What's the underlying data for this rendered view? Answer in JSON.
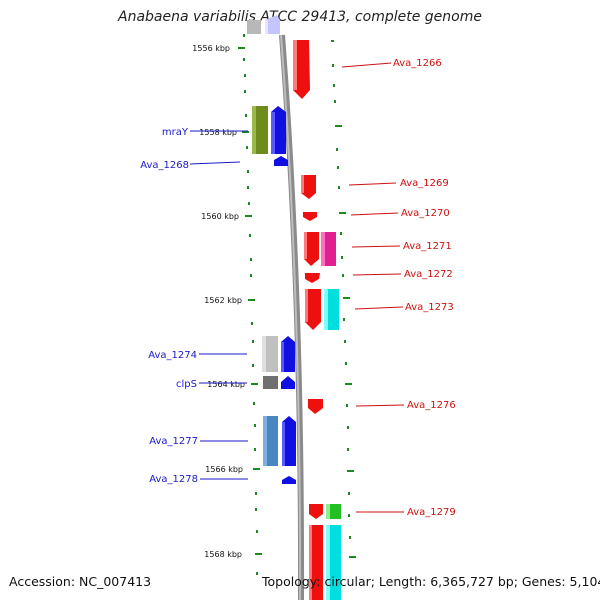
{
  "title": "Anabaena variabilis ATCC 29413, complete genome",
  "footer": {
    "accession": "Accession: NC_007413",
    "genome_info": "Topology: circular; Length: 6,365,727 bp; Genes: 5,104"
  },
  "scale_ticks": [
    "1556 kbp",
    "1558 kbp",
    "1560 kbp",
    "1562 kbp",
    "1564 kbp",
    "1566 kbp",
    "1568 kbp"
  ],
  "left_labels": [
    "mraY",
    "Ava_1268",
    "Ava_1274",
    "clpS",
    "Ava_1277",
    "Ava_1278"
  ],
  "right_labels": [
    "Ava_1266",
    "Ava_1269",
    "Ava_1270",
    "Ava_1271",
    "Ava_1272",
    "Ava_1273",
    "Ava_1276",
    "Ava_1279"
  ],
  "colors": {
    "backbone": "#8a8a8a",
    "tick": "#1c8a1c",
    "forward_label": "#1a1ac8",
    "reverse_label": "#cc1111"
  }
}
